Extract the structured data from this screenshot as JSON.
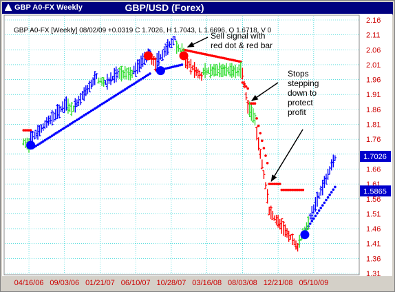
{
  "window": {
    "title": "GBP A0-FX Weekly"
  },
  "header": {
    "title": "GBP/USD (Forex)",
    "info": "GBP A0-FX [Weekly] 08/02/09 +0.0319 C 1.7026, H 1.7043, L 1.6696, O 1.6718, V 0"
  },
  "colors": {
    "up": "#0000ff",
    "down": "#ff0000",
    "neutral": "#33dd33",
    "stop_buy": "#0000ff",
    "stop_sell": "#ff0000",
    "grid": "#00cccc",
    "axis_text": "#cc0000",
    "price_tag": "#0000cc"
  },
  "chart_data": {
    "type": "ohlc-bar",
    "ylim": [
      1.31,
      2.16
    ],
    "yticks": [
      "2.16",
      "2.11",
      "2.06",
      "2.01",
      "1.96",
      "1.91",
      "1.86",
      "1.81",
      "1.76",
      "1.71",
      "1.66",
      "1.61",
      "1.56",
      "1.51",
      "1.46",
      "1.41",
      "1.36",
      "1.31"
    ],
    "xticks": [
      "04/16/06",
      "09/03/06",
      "01/21/07",
      "06/10/07",
      "10/28/07",
      "03/16/08",
      "08/03/08",
      "12/21/08",
      "05/10/09"
    ],
    "price_tags": [
      {
        "label": "1.7026",
        "value": 1.7026
      },
      {
        "label": "1.5865",
        "value": 1.5865
      }
    ],
    "last_close": 1.7026,
    "segments": [
      {
        "from": "2006-03-26",
        "to": "2006-04-16",
        "color": "neutral",
        "start": 1.75,
        "end": 1.74
      },
      {
        "from": "2006-04-23",
        "to": "2006-09-10",
        "color": "up",
        "start": 1.76,
        "end": 1.88
      },
      {
        "from": "2006-09-17",
        "to": "2006-10-08",
        "color": "neutral",
        "start": 1.87,
        "end": 1.86
      },
      {
        "from": "2006-10-15",
        "to": "2007-01-07",
        "color": "up",
        "start": 1.87,
        "end": 1.97
      },
      {
        "from": "2007-01-14",
        "to": "2007-02-04",
        "color": "neutral",
        "start": 1.96,
        "end": 1.95
      },
      {
        "from": "2007-02-11",
        "to": "2007-04-01",
        "color": "up",
        "start": 1.95,
        "end": 1.98
      },
      {
        "from": "2007-04-08",
        "to": "2007-05-27",
        "color": "neutral",
        "start": 1.98,
        "end": 1.98
      },
      {
        "from": "2007-06-03",
        "to": "2007-08-05",
        "color": "up",
        "start": 1.99,
        "end": 2.05
      },
      {
        "from": "2007-08-12",
        "to": "2007-08-26",
        "color": "down",
        "start": 2.03,
        "end": 2.01
      },
      {
        "from": "2007-09-02",
        "to": "2007-11-11",
        "color": "up",
        "start": 2.02,
        "end": 2.1
      },
      {
        "from": "2007-11-18",
        "to": "2007-12-16",
        "color": "neutral",
        "start": 2.07,
        "end": 2.05
      },
      {
        "from": "2007-12-23",
        "to": "2008-02-24",
        "color": "down",
        "start": 2.02,
        "end": 1.97
      },
      {
        "from": "2008-03-02",
        "to": "2008-07-27",
        "color": "neutral",
        "start": 1.99,
        "end": 1.99
      },
      {
        "from": "2008-08-03",
        "to": "2008-08-24",
        "color": "down",
        "start": 1.98,
        "end": 1.87
      },
      {
        "from": "2008-08-31",
        "to": "2008-09-21",
        "color": "neutral",
        "start": 1.86,
        "end": 1.83
      },
      {
        "from": "2008-09-28",
        "to": "2008-11-09",
        "color": "down",
        "start": 1.78,
        "end": 1.57
      },
      {
        "from": "2008-11-16",
        "to": "2009-03-08",
        "color": "down",
        "start": 1.52,
        "end": 1.4
      },
      {
        "from": "2009-03-15",
        "to": "2009-04-19",
        "color": "neutral",
        "start": 1.42,
        "end": 1.48
      },
      {
        "from": "2009-04-26",
        "to": "2009-08-02",
        "color": "up",
        "start": 1.5,
        "end": 1.7
      }
    ],
    "stops": [
      {
        "from": "2006-03-26",
        "to": "2006-04-23",
        "side": "sell",
        "start": 1.79,
        "end": 1.79
      },
      {
        "from": "2006-04-30",
        "to": "2007-08-05",
        "side": "buy",
        "start": 1.73,
        "end": 1.98
      },
      {
        "from": "2007-08-12",
        "to": "2007-08-26",
        "side": "sell",
        "start": 2.03,
        "end": 2.03
      },
      {
        "from": "2007-09-02",
        "to": "2007-12-09",
        "side": "buy",
        "start": 1.99,
        "end": 2.01
      },
      {
        "from": "2007-12-16",
        "to": "2008-07-27",
        "side": "sell",
        "start": 2.06,
        "end": 2.02
      },
      {
        "from": "2008-08-03",
        "to": "2008-08-24",
        "side": "sell",
        "start": 1.95,
        "end": 1.93
      },
      {
        "from": "2008-08-31",
        "to": "2008-09-21",
        "side": "sell",
        "start": 1.88,
        "end": 1.88
      },
      {
        "from": "2008-09-28",
        "to": "2008-11-09",
        "side": "sell",
        "start": 1.83,
        "end": 1.68
      },
      {
        "from": "2008-11-16",
        "to": "2008-12-28",
        "side": "sell",
        "start": 1.61,
        "end": 1.61
      },
      {
        "from": "2009-01-04",
        "to": "2009-03-29",
        "side": "sell",
        "start": 1.59,
        "end": 1.59
      },
      {
        "from": "2009-04-05",
        "to": "2009-08-02",
        "side": "buy",
        "start": 1.45,
        "end": 1.6
      }
    ],
    "signals": [
      {
        "date": "2006-04-23",
        "value": 1.74,
        "type": "buy"
      },
      {
        "date": "2007-07-29",
        "value": 2.04,
        "type": "sell"
      },
      {
        "date": "2007-09-16",
        "value": 1.99,
        "type": "buy"
      },
      {
        "date": "2007-12-16",
        "value": 2.04,
        "type": "sell"
      },
      {
        "date": "2009-04-05",
        "value": 1.44,
        "type": "buy"
      }
    ],
    "annotations": [
      {
        "lines": [
          "Sell signal with",
          "red dot & red bar"
        ],
        "arrow_to": {
          "date": "2007-12-23",
          "value": 2.06
        }
      },
      {
        "lines": [
          "Stops",
          "stepping",
          "down to",
          "protect",
          "profit"
        ],
        "arrow_to": {
          "date": "2008-08-31",
          "value": 1.88
        }
      },
      {
        "lines": [],
        "arrow_to": {
          "date": "2008-11-16",
          "value": 1.61
        }
      }
    ]
  }
}
